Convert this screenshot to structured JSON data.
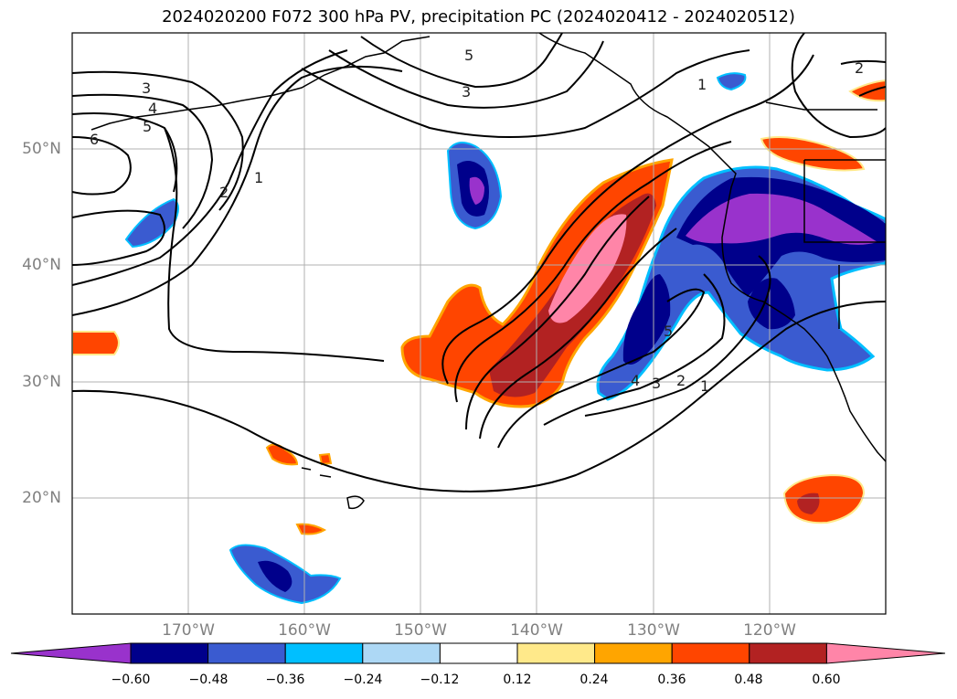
{
  "title": "2024020200 F072 300 hPa PV, precipitation PC (2024020412 - 2024020512)",
  "lat_labels": [
    "50°N",
    "40°N",
    "30°N",
    "20°N"
  ],
  "lon_labels": [
    "170°W",
    "160°W",
    "150°W",
    "140°W",
    "130°W",
    "120°W"
  ],
  "colorbar": {
    "ticks": [
      "−0.60",
      "−0.48",
      "−0.36",
      "−0.24",
      "−0.12",
      "0.12",
      "0.24",
      "0.36",
      "0.48",
      "0.60"
    ],
    "colors": [
      "#9932cc",
      "#00008b",
      "#3a5bd0",
      "#00bfff",
      "#add8f5",
      "#ffffff",
      "#ffe98a",
      "#ffa500",
      "#ff4500",
      "#b22222",
      "#ff85a8"
    ],
    "extend": "both"
  },
  "map": {
    "projection": "PlateCarree",
    "lon_range": [
      -180,
      -110
    ],
    "lat_range": [
      10,
      60
    ],
    "gridlines": true,
    "contour_field": "300 hPa PV",
    "filled_field": "precipitation PC",
    "contour_labels": [
      "3",
      "4",
      "5",
      "6",
      "2",
      "1",
      "5",
      "3",
      "1",
      "2",
      "5",
      "4",
      "3",
      "2",
      "1"
    ]
  }
}
